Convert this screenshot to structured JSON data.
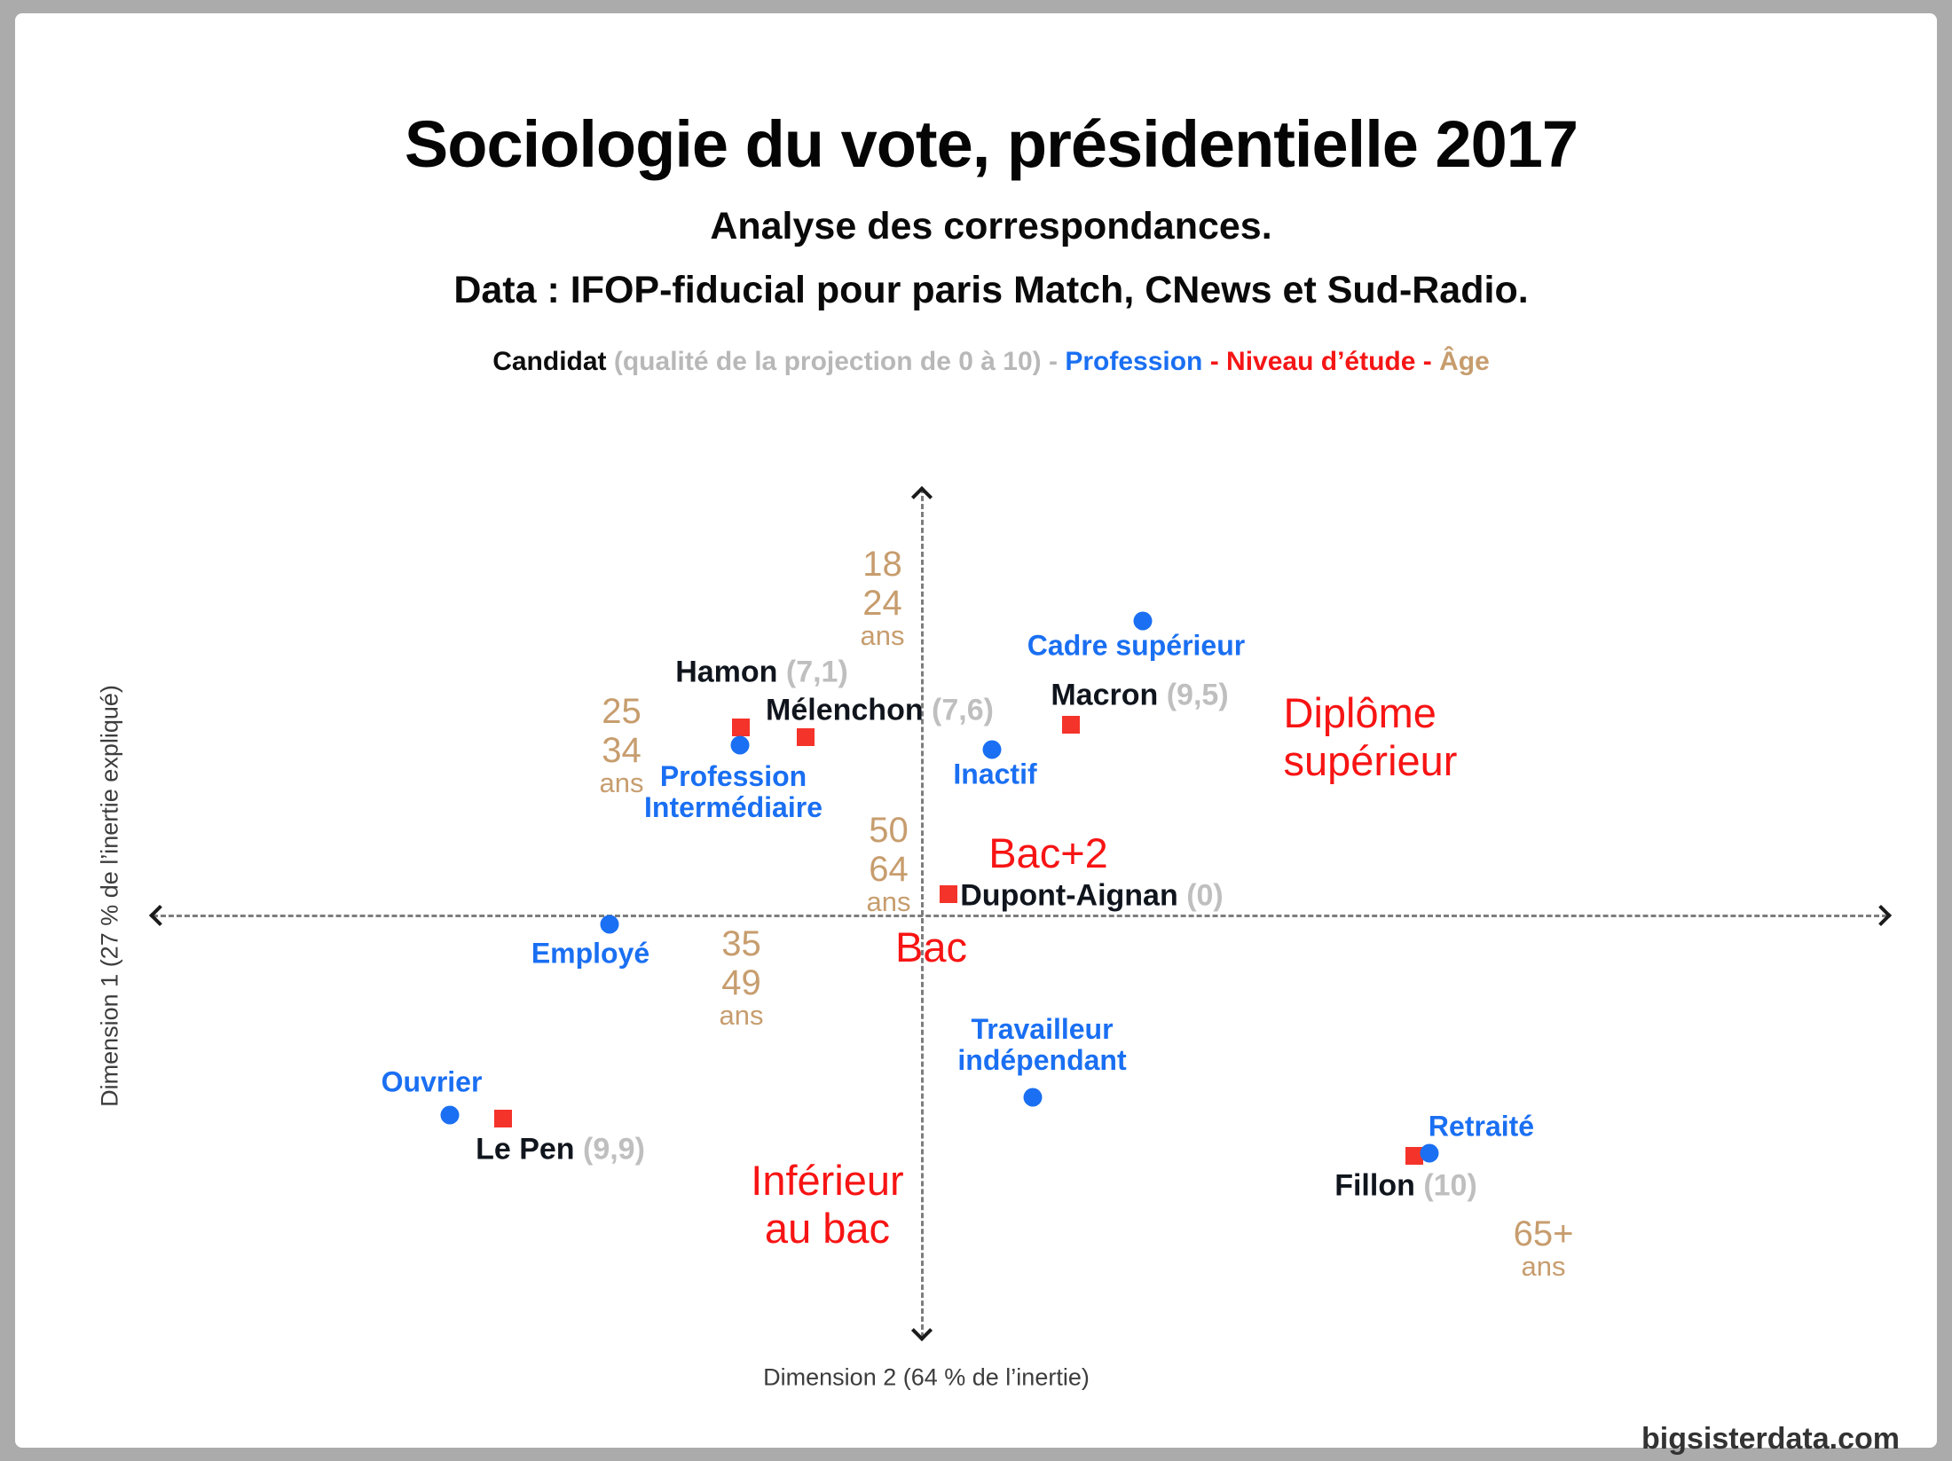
{
  "watermark": "bigsisterdata.com",
  "legend": {
    "segments": [
      {
        "text": "Candidat",
        "color": "#0d0d0d",
        "bold": true
      },
      {
        "text": " (qualité de la projection de 0 à 10)",
        "color": "#b8b8b8",
        "bold": true
      },
      {
        "text": " - ",
        "color": "#b8b8b8",
        "bold": true
      },
      {
        "text": "Profession",
        "color": "#1a6ff2",
        "bold": true
      },
      {
        "text": " - ",
        "color": "#f51616",
        "bold": true
      },
      {
        "text": "Niveau d’étude",
        "color": "#f51616",
        "bold": true
      },
      {
        "text": " - ",
        "color": "#f51616",
        "bold": true
      },
      {
        "text": "Âge",
        "color": "#c79d6e",
        "bold": true
      }
    ]
  },
  "chart_data": {
    "type": "scatter",
    "title": "Sociologie du vote, présidentielle 2017",
    "subtitle": "Analyse des correspondances.",
    "source": "Data : IFOP-fiducial pour paris Match, CNews et Sud-Radio.",
    "x_axis": {
      "label": "Dimension 2 (64 % de l’inertie)",
      "ticks": "none",
      "style": "dashed, arrows both ends"
    },
    "y_axis": {
      "label": "Dimension 1 (27 % de l’inertie expliqué)",
      "ticks": "none",
      "style": "dashed, arrows both ends"
    },
    "legend_note": "qualité de la projection de 0 à 10",
    "series": [
      {
        "id": "candidat",
        "name": "Candidat",
        "marker": "square",
        "color": "#f4332a",
        "points": [
          {
            "id": "hamon",
            "label": "Hamon",
            "quality": "7,1",
            "dim2": -0.204,
            "dim1": 0.213
          },
          {
            "id": "melenchon",
            "label": "Mélenchon",
            "quality": "7,6",
            "dim2": -0.131,
            "dim1": 0.202
          },
          {
            "id": "macron",
            "label": "Macron",
            "quality": "9,5",
            "dim2": 0.168,
            "dim1": 0.216
          },
          {
            "id": "dupont_aignan",
            "label": "Dupont-Aignan",
            "quality": "0",
            "dim2": 0.03,
            "dim1": 0.025
          },
          {
            "id": "le_pen",
            "label": "Le Pen",
            "quality": "9,9",
            "dim2": -0.472,
            "dim1": -0.228
          },
          {
            "id": "fillon",
            "label": "Fillon",
            "quality": "10",
            "dim2": 0.555,
            "dim1": -0.27
          }
        ]
      },
      {
        "id": "profession",
        "name": "Profession",
        "marker": "dot",
        "color": "#1a6ff2",
        "points": [
          {
            "id": "cadre_superieur",
            "label": "Cadre supérieur",
            "dim2": 0.249,
            "dim1": 0.333
          },
          {
            "id": "profession_intermediaire",
            "label": "Profession Intermédiaire",
            "lines": [
              "Profession",
              "Intermédiaire"
            ],
            "dim2": -0.205,
            "dim1": 0.193
          },
          {
            "id": "inactif",
            "label": "Inactif",
            "dim2": 0.079,
            "dim1": 0.188
          },
          {
            "id": "employe",
            "label": "Employé",
            "dim2": -0.352,
            "dim1": -0.009
          },
          {
            "id": "ouvrier",
            "label": "Ouvrier",
            "dim2": -0.532,
            "dim1": -0.224
          },
          {
            "id": "travailleur_independant",
            "label": "Travailleur indépendant",
            "lines": [
              "Travailleur",
              "indépendant"
            ],
            "dim2": 0.125,
            "dim1": -0.204
          },
          {
            "id": "retraite",
            "label": "Retraité",
            "dim2": 0.572,
            "dim1": -0.267
          }
        ]
      },
      {
        "id": "niveau_etude",
        "name": "Niveau d’étude",
        "marker": "text",
        "color": "#f71414",
        "points": [
          {
            "id": "diplome_superieur",
            "label": "Diplôme supérieur",
            "lines": [
              "Diplôme",
              "supérieur"
            ],
            "dim2": 0.408,
            "dim1": 0.202
          },
          {
            "id": "bac_plus_2",
            "label": "Bac+2",
            "lines": [
              "Bac+2"
            ],
            "dim2": 0.143,
            "dim1": 0.071
          },
          {
            "id": "bac",
            "label": "Bac",
            "lines": [
              "Bac"
            ],
            "dim2": 0.011,
            "dim1": -0.035
          },
          {
            "id": "inferieur_au_bac",
            "label": "Inférieur au bac",
            "lines": [
              "Inférieur",
              "au bac"
            ],
            "dim2": -0.106,
            "dim1": -0.325
          }
        ]
      },
      {
        "id": "age",
        "name": "Âge",
        "marker": "text",
        "color": "#c79d6e",
        "points": [
          {
            "id": "age_18_24",
            "label": "18 24 ans",
            "lines": [
              "18",
              "24",
              "ans"
            ],
            "dim2": -0.044,
            "dim1": 0.36
          },
          {
            "id": "age_25_34",
            "label": "25 34 ans",
            "lines": [
              "25",
              "34",
              "ans"
            ],
            "dim2": -0.338,
            "dim1": 0.194
          },
          {
            "id": "age_50_64",
            "label": "50 64 ans",
            "lines": [
              "50",
              "64",
              "ans"
            ],
            "dim2": -0.037,
            "dim1": 0.06
          },
          {
            "id": "age_35_49",
            "label": "35 49 ans",
            "lines": [
              "35",
              "49",
              "ans"
            ],
            "dim2": -0.203,
            "dim1": -0.068
          },
          {
            "id": "age_65_plus",
            "label": "65+ ans",
            "lines": [
              "65+",
              "ans"
            ],
            "dim2": 0.701,
            "dim1": -0.373
          }
        ]
      }
    ]
  }
}
